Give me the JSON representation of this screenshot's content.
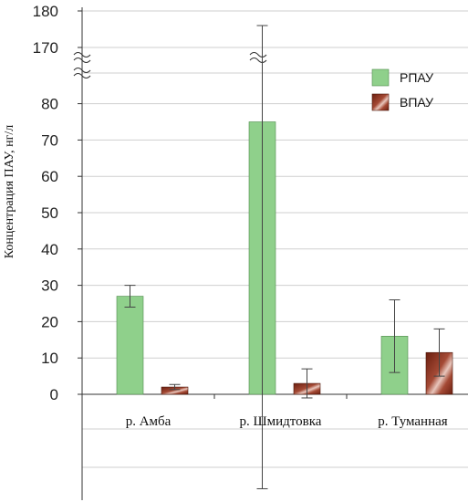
{
  "chart_data": {
    "type": "bar",
    "ylabel": "Концентрация ПАУ, нг/л",
    "categories": [
      "р. Амба",
      "р. Шмидтовка",
      "р. Туманная"
    ],
    "y_ticks_lower": [
      0,
      10,
      20,
      30,
      40,
      50,
      60,
      70,
      80
    ],
    "y_ticks_upper": [
      170,
      180
    ],
    "axis_break": [
      80,
      170
    ],
    "ylim": [
      0,
      180
    ],
    "series": [
      {
        "name": "РПАУ",
        "color": "#8fd08b",
        "values": [
          27,
          75,
          16
        ],
        "error": [
          3,
          101,
          10
        ]
      },
      {
        "name": "ВПАУ",
        "color": "#8a2e1a",
        "values": [
          2,
          3,
          11.5
        ],
        "error": [
          0.7,
          4,
          6.5
        ]
      }
    ],
    "legend_position": "top-right",
    "grid": true
  }
}
